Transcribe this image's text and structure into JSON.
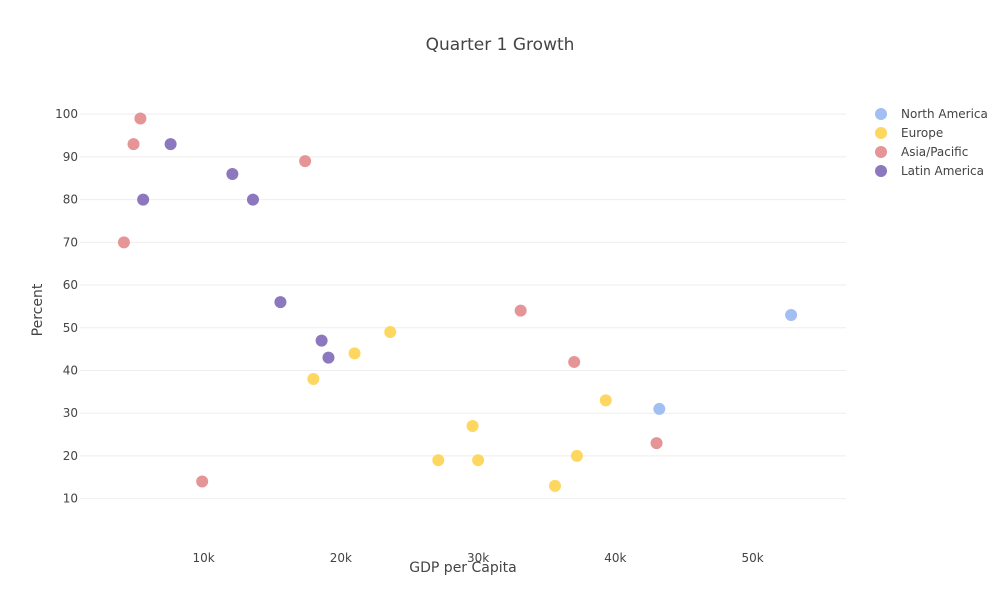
{
  "chart_data": {
    "type": "scatter",
    "title": "Quarter 1 Growth",
    "xlabel": "GDP per Capita",
    "ylabel": "Percent",
    "xlim": [
      1000,
      56800
    ],
    "ylim": [
      5,
      108
    ],
    "xticks": [
      {
        "value": 10000,
        "label": "10k"
      },
      {
        "value": 20000,
        "label": "20k"
      },
      {
        "value": 30000,
        "label": "30k"
      },
      {
        "value": 40000,
        "label": "40k"
      },
      {
        "value": 50000,
        "label": "50k"
      }
    ],
    "yticks": [
      10,
      20,
      30,
      40,
      50,
      60,
      70,
      80,
      90,
      100
    ],
    "grid": "horizontal",
    "legend_position": "top-right",
    "series": [
      {
        "name": "North America",
        "color": "#a2bff4",
        "points": [
          [
            52800,
            53
          ],
          [
            43200,
            31
          ]
        ]
      },
      {
        "name": "Europe",
        "color": "#fdd760",
        "points": [
          [
            18000,
            38
          ],
          [
            21000,
            44
          ],
          [
            23600,
            49
          ],
          [
            27100,
            19
          ],
          [
            29600,
            27
          ],
          [
            30000,
            19
          ],
          [
            35600,
            13
          ],
          [
            37200,
            20
          ],
          [
            39300,
            33
          ]
        ]
      },
      {
        "name": "Asia/Pacific",
        "color": "#e69597",
        "points": [
          [
            4200,
            70
          ],
          [
            4900,
            93
          ],
          [
            5400,
            99
          ],
          [
            9900,
            14
          ],
          [
            17400,
            89
          ],
          [
            33100,
            54
          ],
          [
            37000,
            42
          ],
          [
            43000,
            23
          ]
        ]
      },
      {
        "name": "Latin America",
        "color": "#8b78bf",
        "points": [
          [
            5600,
            80
          ],
          [
            7600,
            93
          ],
          [
            12100,
            86
          ],
          [
            13600,
            80
          ],
          [
            15600,
            56
          ],
          [
            18600,
            47
          ],
          [
            19100,
            43
          ]
        ]
      }
    ]
  }
}
